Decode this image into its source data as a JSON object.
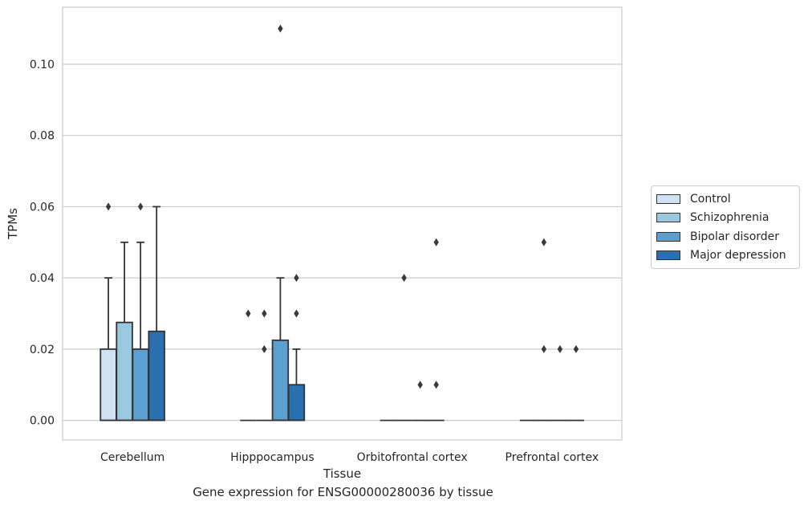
{
  "chart_data": {
    "type": "box",
    "title": "Gene expression for ENSG00000280036 by tissue",
    "xlabel": "Tissue",
    "ylabel": "TPMs",
    "ylim": [
      -0.0055,
      0.116
    ],
    "yticks": [
      0.0,
      0.02,
      0.04,
      0.06,
      0.08,
      0.1
    ],
    "ytick_labels": [
      "0.00",
      "0.02",
      "0.04",
      "0.06",
      "0.08",
      "0.10"
    ],
    "grid": "horizontal",
    "legend_position": "right",
    "categories": [
      "Cerebellum",
      "Hipppocampus",
      "Orbitofrontal cortex",
      "Prefrontal cortex"
    ],
    "series": [
      {
        "name": "Control",
        "color": "#d0e1f2",
        "boxes": [
          {
            "q1": 0.0,
            "median": 0.0,
            "q3": 0.02,
            "whisker_low": 0.0,
            "whisker_high": 0.04,
            "outliers": [
              0.06
            ]
          },
          {
            "q1": 0.0,
            "median": 0.0,
            "q3": 0.0,
            "whisker_low": 0.0,
            "whisker_high": 0.0,
            "outliers": [
              0.03
            ]
          },
          {
            "q1": 0.0,
            "median": 0.0,
            "q3": 0.0,
            "whisker_low": 0.0,
            "whisker_high": 0.0,
            "outliers": []
          },
          {
            "q1": 0.0,
            "median": 0.0,
            "q3": 0.0,
            "whisker_low": 0.0,
            "whisker_high": 0.0,
            "outliers": []
          }
        ]
      },
      {
        "name": "Schizophrenia",
        "color": "#9ac8e0",
        "boxes": [
          {
            "q1": 0.0,
            "median": 0.0,
            "q3": 0.0275,
            "whisker_low": 0.0,
            "whisker_high": 0.05,
            "outliers": []
          },
          {
            "q1": 0.0,
            "median": 0.0,
            "q3": 0.0,
            "whisker_low": 0.0,
            "whisker_high": 0.0,
            "outliers": [
              0.02,
              0.03
            ]
          },
          {
            "q1": 0.0,
            "median": 0.0,
            "q3": 0.0,
            "whisker_low": 0.0,
            "whisker_high": 0.0,
            "outliers": [
              0.04
            ]
          },
          {
            "q1": 0.0,
            "median": 0.0,
            "q3": 0.0,
            "whisker_low": 0.0,
            "whisker_high": 0.0,
            "outliers": [
              0.02,
              0.05
            ]
          }
        ]
      },
      {
        "name": "Bipolar disorder",
        "color": "#5a9fcd",
        "boxes": [
          {
            "q1": 0.0,
            "median": 0.0,
            "q3": 0.02,
            "whisker_low": 0.0,
            "whisker_high": 0.05,
            "outliers": [
              0.06
            ]
          },
          {
            "q1": 0.0,
            "median": 0.0,
            "q3": 0.0225,
            "whisker_low": 0.0,
            "whisker_high": 0.04,
            "outliers": [
              0.11
            ]
          },
          {
            "q1": 0.0,
            "median": 0.0,
            "q3": 0.0,
            "whisker_low": 0.0,
            "whisker_high": 0.0,
            "outliers": [
              0.01
            ]
          },
          {
            "q1": 0.0,
            "median": 0.0,
            "q3": 0.0,
            "whisker_low": 0.0,
            "whisker_high": 0.0,
            "outliers": [
              0.02
            ]
          }
        ]
      },
      {
        "name": "Major depression",
        "color": "#2a6fb0",
        "boxes": [
          {
            "q1": 0.0,
            "median": 0.0,
            "q3": 0.025,
            "whisker_low": 0.0,
            "whisker_high": 0.06,
            "outliers": []
          },
          {
            "q1": 0.0,
            "median": 0.0,
            "q3": 0.01,
            "whisker_low": 0.0,
            "whisker_high": 0.02,
            "outliers": [
              0.03,
              0.04
            ]
          },
          {
            "q1": 0.0,
            "median": 0.0,
            "q3": 0.0,
            "whisker_low": 0.0,
            "whisker_high": 0.0,
            "outliers": [
              0.01,
              0.05
            ]
          },
          {
            "q1": 0.0,
            "median": 0.0,
            "q3": 0.0,
            "whisker_low": 0.0,
            "whisker_high": 0.0,
            "outliers": [
              0.02
            ]
          }
        ]
      }
    ]
  }
}
